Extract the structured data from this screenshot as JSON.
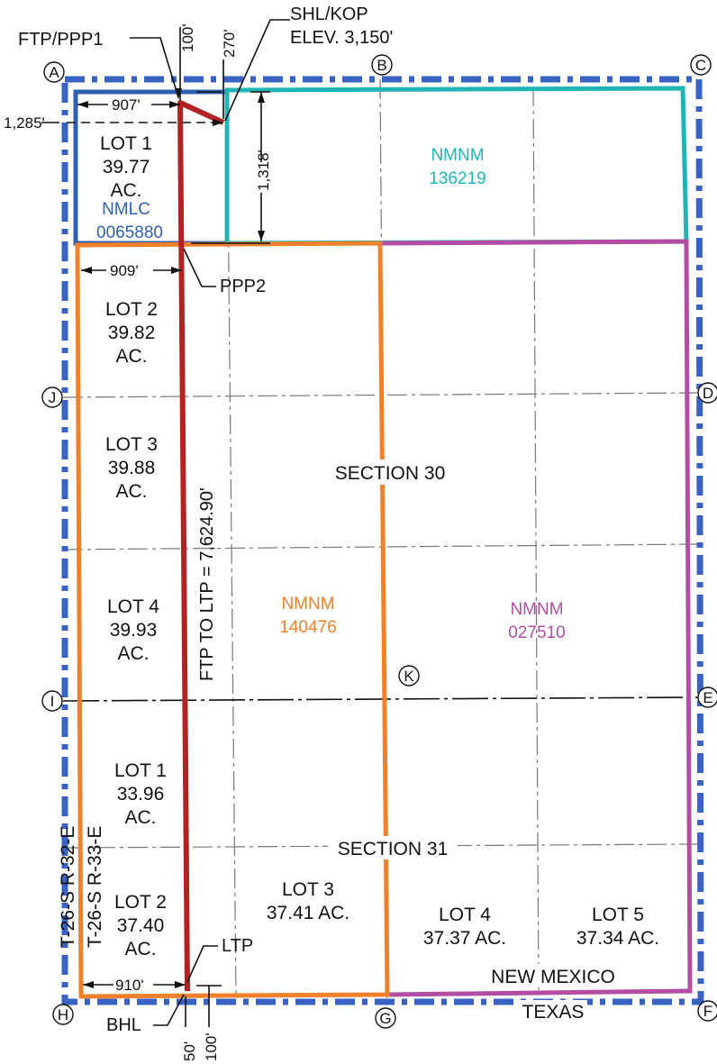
{
  "top_labels": {
    "shl_kop": "SHL/KOP",
    "elevation": "ELEV. 3,150'",
    "ftp_ppp1": "FTP/PPP1",
    "dim_100_top": "100'",
    "dim_270_top": "270'"
  },
  "dimensions": {
    "d907": "907'",
    "d1285": "1,285'",
    "d1318": "1,318'",
    "d909": "909'",
    "ppp2": "PPP2",
    "ftp_ltp": "FTP TO LTP = 7,624.90'",
    "d910": "910'",
    "ltp": "LTP",
    "bhl": "BHL",
    "d50": "50'",
    "d100_bottom": "100'"
  },
  "corners": [
    "A",
    "B",
    "C",
    "D",
    "E",
    "F",
    "G",
    "H",
    "I",
    "J",
    "K"
  ],
  "lots": [
    {
      "name": "LOT 1",
      "acres": "39.77",
      "unit": "AC."
    },
    {
      "name": "LOT 2",
      "acres": "39.82",
      "unit": "AC."
    },
    {
      "name": "LOT 3",
      "acres": "39.88",
      "unit": "AC."
    },
    {
      "name": "LOT 4",
      "acres": "39.93",
      "unit": "AC."
    },
    {
      "name": "LOT 1",
      "acres": "33.96",
      "unit": "AC."
    },
    {
      "name": "LOT 2",
      "acres": "37.40",
      "unit": "AC."
    },
    {
      "name": "LOT 3",
      "acres": "37.41 AC."
    },
    {
      "name": "LOT 4",
      "acres": "37.37 AC."
    },
    {
      "name": "LOT 5",
      "acres": "37.34 AC."
    }
  ],
  "leases": {
    "nmlc": {
      "name": "NMLC",
      "number": "0065880",
      "color": "#2f5fb3"
    },
    "nmnm_136219": {
      "name": "NMNM",
      "number": "136219",
      "color": "#1fb5b5"
    },
    "nmnm_140476": {
      "name": "NMNM",
      "number": "140476",
      "color": "#f0802a"
    },
    "nmnm_027510": {
      "name": "NMNM",
      "number": "027510",
      "color": "#b34da3"
    }
  },
  "sections": {
    "s30": "SECTION 30",
    "s31": "SECTION 31"
  },
  "township": {
    "t1": "T-26-S R-32-E",
    "t2": "T-26-S R-33-E"
  },
  "states": {
    "nm": "NEW MEXICO",
    "tx": "TEXAS"
  },
  "colors": {
    "boundary": "#3a62c4",
    "wellbore": "#b22222",
    "nmlc": "#2f5fb3",
    "teal": "#1fb5b5",
    "orange": "#f0802a",
    "magenta": "#b34da3"
  }
}
